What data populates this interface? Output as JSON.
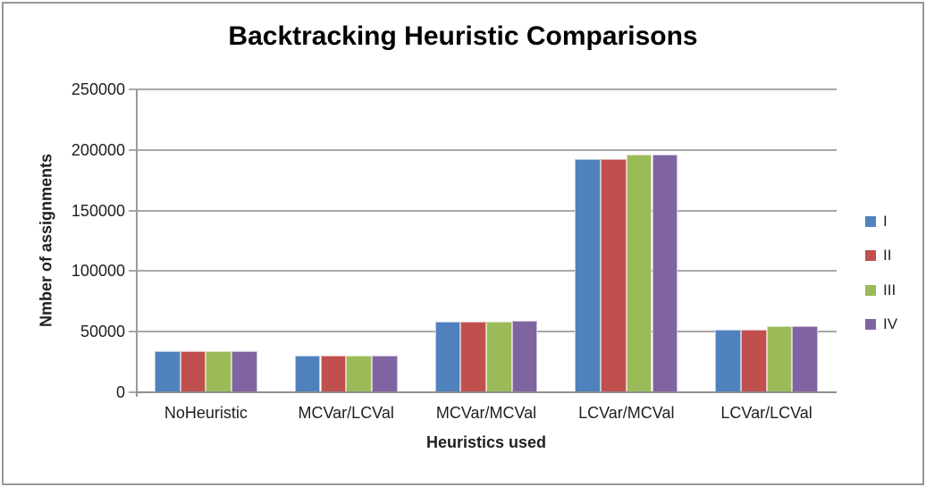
{
  "chart": {
    "title": "Backtracking Heuristic Comparisons",
    "y_axis_title": "Nmber of assignments",
    "x_axis_title": "Heuristics used"
  },
  "chart_data": {
    "type": "bar",
    "title": "Backtracking Heuristic Comparisons",
    "xlabel": "Heuristics used",
    "ylabel": "Nmber of assignments",
    "categories": [
      "NoHeuristic",
      "MCVar/LCVal",
      "MCVar/MCVal",
      "LCVar/MCVal",
      "LCVar/LCVal"
    ],
    "series": [
      {
        "name": "I",
        "color": "#4F81BD",
        "border_color": "#B8CCE4",
        "values": [
          34000,
          30500,
          58000,
          192500,
          51500
        ]
      },
      {
        "name": "II",
        "color": "#C0504D",
        "border_color": "#E6B8B7",
        "values": [
          34000,
          30500,
          58500,
          192500,
          51500
        ]
      },
      {
        "name": "III",
        "color": "#9BBB59",
        "border_color": "#D8E4BC",
        "values": [
          34000,
          30500,
          58500,
          196000,
          54500
        ]
      },
      {
        "name": "IV",
        "color": "#8064A2",
        "border_color": "#CCC0DA",
        "values": [
          34000,
          30500,
          59000,
          196000,
          54500
        ]
      }
    ],
    "ylim": [
      0,
      250000
    ],
    "ytick_step": 50000,
    "ytick_labels": [
      "0",
      "50000",
      "100000",
      "150000",
      "200000",
      "250000"
    ],
    "grid": true,
    "legend_position": "right",
    "legend_labels": [
      "I",
      "II",
      "III",
      "IV"
    ]
  }
}
